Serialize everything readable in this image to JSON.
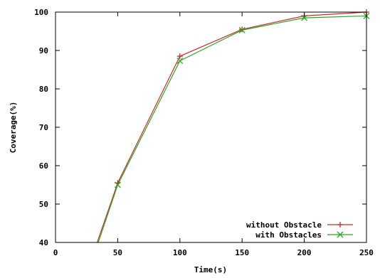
{
  "chart_data": {
    "type": "line",
    "title": "",
    "xlabel": "Time(s)",
    "ylabel": "Coverage(%)",
    "xlim": [
      0,
      250
    ],
    "ylim": [
      40,
      100
    ],
    "xticks": [
      0,
      50,
      100,
      150,
      200,
      250
    ],
    "yticks": [
      40,
      50,
      60,
      70,
      80,
      90,
      100
    ],
    "grid": false,
    "legend_position": "bottom-right",
    "series": [
      {
        "name": "without Obstacle",
        "color": "#d62728",
        "marker": "plus",
        "x": [
          25,
          50,
          100,
          150,
          200,
          250
        ],
        "y": [
          32,
          55.5,
          88.5,
          95.5,
          99,
          100
        ]
      },
      {
        "name": "with Obstacles",
        "color": "#22aa22",
        "marker": "cross",
        "x": [
          25,
          50,
          100,
          150,
          200,
          250
        ],
        "y": [
          31,
          55,
          87.3,
          95.3,
          98.5,
          99
        ]
      }
    ]
  }
}
